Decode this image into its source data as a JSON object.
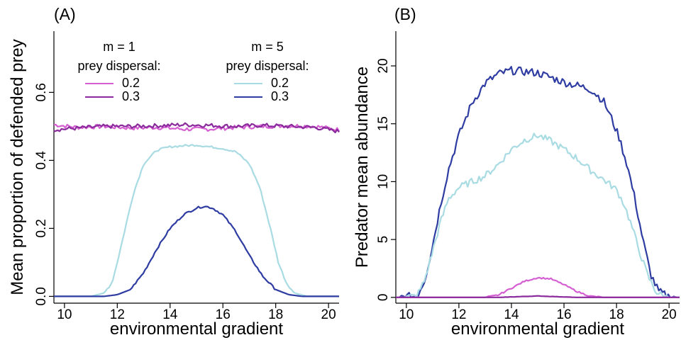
{
  "colors": {
    "m1_0.2": "#d55fd2",
    "m1_0.3": "#8b2a9c",
    "m5_0.2": "#a9dbe3",
    "m5_0.3": "#2f3da3"
  },
  "chart_data": [
    {
      "panel_label": "(A)",
      "type": "line",
      "xlabel": "environmental gradient",
      "ylabel": "Mean proportion of defended prey",
      "xlim": [
        9.6,
        20.4
      ],
      "ylim": [
        -0.02,
        0.78
      ],
      "xticks": [
        10,
        12,
        14,
        16,
        18,
        20
      ],
      "xtick_labels": [
        "10",
        "12",
        "14",
        "16",
        "18",
        "20"
      ],
      "yticks": [
        0.0,
        0.2,
        0.4,
        0.6
      ],
      "ytick_labels": [
        "0.0",
        "0.2",
        "0.4",
        "0.6"
      ],
      "series": [
        {
          "key": "m1_0.2",
          "x": [
            9.6,
            10.5,
            11.5,
            12.5,
            13.5,
            14.5,
            15.5,
            16.5,
            17.5,
            18.5,
            19.5,
            20.4
          ],
          "y": [
            0.505,
            0.497,
            0.5,
            0.495,
            0.497,
            0.492,
            0.492,
            0.497,
            0.5,
            0.502,
            0.5,
            0.49
          ]
        },
        {
          "key": "m1_0.3",
          "x": [
            9.6,
            10.5,
            11.5,
            12.5,
            13.5,
            14.5,
            15.5,
            16.5,
            17.5,
            18.5,
            19.5,
            20.4
          ],
          "y": [
            0.49,
            0.495,
            0.5,
            0.5,
            0.502,
            0.505,
            0.503,
            0.5,
            0.503,
            0.5,
            0.497,
            0.485
          ]
        },
        {
          "key": "m5_0.2",
          "x": [
            9.6,
            11.0,
            11.5,
            11.8,
            12.0,
            12.3,
            12.6,
            13.0,
            13.5,
            14.0,
            14.5,
            15.0,
            15.5,
            16.0,
            16.5,
            17.0,
            17.4,
            17.8,
            18.1,
            18.4,
            18.7,
            19.2,
            20.4
          ],
          "y": [
            0.0,
            0.0,
            0.01,
            0.04,
            0.1,
            0.2,
            0.3,
            0.39,
            0.43,
            0.44,
            0.443,
            0.445,
            0.44,
            0.435,
            0.425,
            0.39,
            0.32,
            0.2,
            0.1,
            0.04,
            0.01,
            0.0,
            0.0
          ]
        },
        {
          "key": "m5_0.3",
          "x": [
            9.6,
            11.5,
            12.0,
            12.5,
            13.0,
            13.5,
            14.0,
            14.5,
            15.0,
            15.3,
            15.6,
            16.0,
            16.5,
            17.0,
            17.5,
            18.0,
            18.5,
            19.0,
            20.4
          ],
          "y": [
            0.0,
            0.0,
            0.005,
            0.02,
            0.07,
            0.14,
            0.2,
            0.24,
            0.26,
            0.265,
            0.26,
            0.24,
            0.19,
            0.12,
            0.06,
            0.02,
            0.005,
            0.0,
            0.0
          ]
        }
      ],
      "legend": {
        "groups": [
          {
            "title": "m = 1",
            "subtitle": "prey dispersal:",
            "entries": [
              {
                "label": "0.2",
                "key": "m1_0.2"
              },
              {
                "label": "0.3",
                "key": "m1_0.3"
              }
            ]
          },
          {
            "title": "m = 5",
            "subtitle": "prey dispersal:",
            "entries": [
              {
                "label": "0.2",
                "key": "m5_0.2"
              },
              {
                "label": "0.3",
                "key": "m5_0.3"
              }
            ]
          }
        ]
      }
    },
    {
      "panel_label": "(B)",
      "type": "line",
      "xlabel": "environmental gradient",
      "ylabel": "Predator mean abundance",
      "xlim": [
        9.6,
        20.4
      ],
      "ylim": [
        -0.5,
        23
      ],
      "xticks": [
        10,
        12,
        14,
        16,
        18,
        20
      ],
      "xtick_labels": [
        "10",
        "12",
        "14",
        "16",
        "18",
        "20"
      ],
      "yticks": [
        0,
        5,
        10,
        15,
        20
      ],
      "ytick_labels": [
        "0",
        "5",
        "10",
        "15",
        "20"
      ],
      "series": [
        {
          "key": "m5_0.3",
          "x": [
            9.6,
            10.4,
            10.7,
            11.0,
            11.3,
            11.6,
            12.0,
            12.5,
            13.0,
            13.5,
            14.0,
            14.5,
            15.0,
            15.5,
            16.0,
            16.5,
            17.0,
            17.5,
            17.8,
            18.1,
            18.4,
            18.7,
            19.0,
            19.3,
            19.6,
            20.0,
            20.4
          ],
          "y": [
            0.0,
            0.1,
            1.5,
            4.5,
            8.0,
            11.0,
            14.0,
            16.8,
            18.5,
            19.3,
            19.6,
            19.5,
            19.4,
            19.0,
            18.6,
            18.3,
            18.0,
            17.0,
            15.5,
            13.8,
            11.5,
            8.5,
            5.0,
            2.0,
            0.5,
            0.05,
            0.0
          ]
        },
        {
          "key": "m5_0.2",
          "x": [
            9.6,
            10.4,
            10.7,
            11.0,
            11.3,
            11.6,
            12.0,
            12.5,
            13.0,
            13.5,
            14.0,
            14.5,
            15.0,
            15.5,
            16.0,
            16.5,
            17.0,
            17.5,
            18.0,
            18.3,
            18.6,
            18.9,
            19.2,
            19.5,
            19.8,
            20.4
          ],
          "y": [
            0.0,
            0.1,
            1.5,
            4.0,
            6.5,
            8.5,
            9.5,
            10.0,
            10.5,
            11.5,
            12.8,
            13.6,
            14.0,
            13.5,
            12.8,
            12.0,
            11.0,
            10.2,
            9.3,
            8.0,
            6.0,
            3.8,
            1.8,
            0.5,
            0.05,
            0.0
          ]
        },
        {
          "key": "m1_0.2",
          "x": [
            9.6,
            13.0,
            13.5,
            14.0,
            14.5,
            15.0,
            15.5,
            16.0,
            16.5,
            17.0,
            17.5,
            20.4
          ],
          "y": [
            0.0,
            0.0,
            0.2,
            0.8,
            1.4,
            1.7,
            1.6,
            1.1,
            0.5,
            0.1,
            0.0,
            0.0
          ]
        },
        {
          "key": "m1_0.3",
          "x": [
            9.6,
            13.5,
            14.5,
            15.0,
            15.5,
            16.5,
            20.4
          ],
          "y": [
            0.0,
            0.0,
            0.08,
            0.12,
            0.08,
            0.0,
            0.0
          ]
        }
      ]
    }
  ]
}
